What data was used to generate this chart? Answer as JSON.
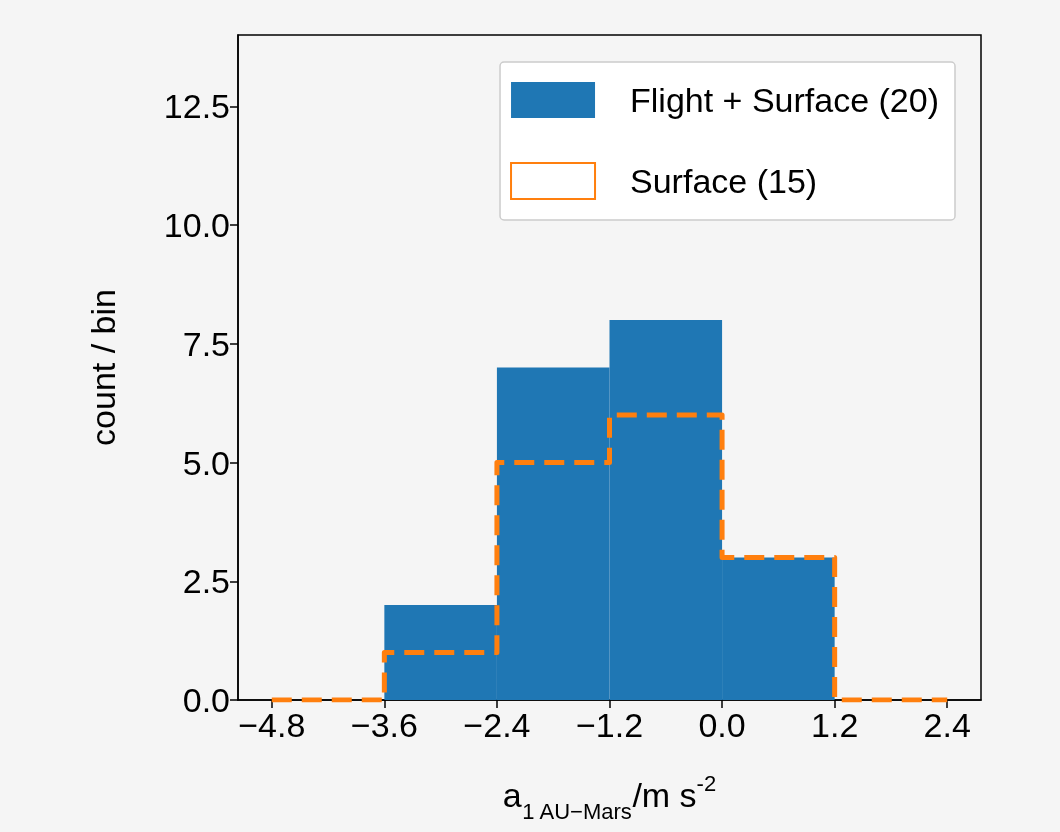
{
  "chart_data": {
    "type": "histogram",
    "xlabel": "a$_{1 AU−Mars}$/m s$^{-2}$",
    "ylabel": "count / bin",
    "bins": [
      -4.8,
      -3.6,
      -2.4,
      -1.2,
      0,
      1.2,
      2.4
    ],
    "series": [
      {
        "name": "Flight + Surface (20)",
        "color": "#1f77b4",
        "values": [
          0,
          2,
          7,
          8,
          3,
          0
        ]
      },
      {
        "name": "Surface (15)",
        "color": "#ff7f0e",
        "values": [
          0,
          1,
          5,
          6,
          3,
          0
        ],
        "line_style": "dashed"
      }
    ],
    "xlim": [
      -5.16,
      2.76
    ],
    "ylim": [
      0,
      14
    ],
    "xticks": [
      {
        "value": -4.8,
        "label": "−4.8"
      },
      {
        "value": -3.6,
        "label": "−3.6"
      },
      {
        "value": -2.4,
        "label": "−2.4"
      },
      {
        "value": -1.2,
        "label": "−1.2"
      },
      {
        "value": 0,
        "label": "0.0"
      },
      1.2,
      2.4
    ],
    "yticks": [
      {
        "value": 0,
        "label": "0.0"
      },
      2.5,
      {
        "value": 5,
        "label": "5.0"
      },
      7.5,
      {
        "value": 10,
        "label": "10.0"
      },
      12.5
    ],
    "grid": false,
    "legend": "top right"
  }
}
